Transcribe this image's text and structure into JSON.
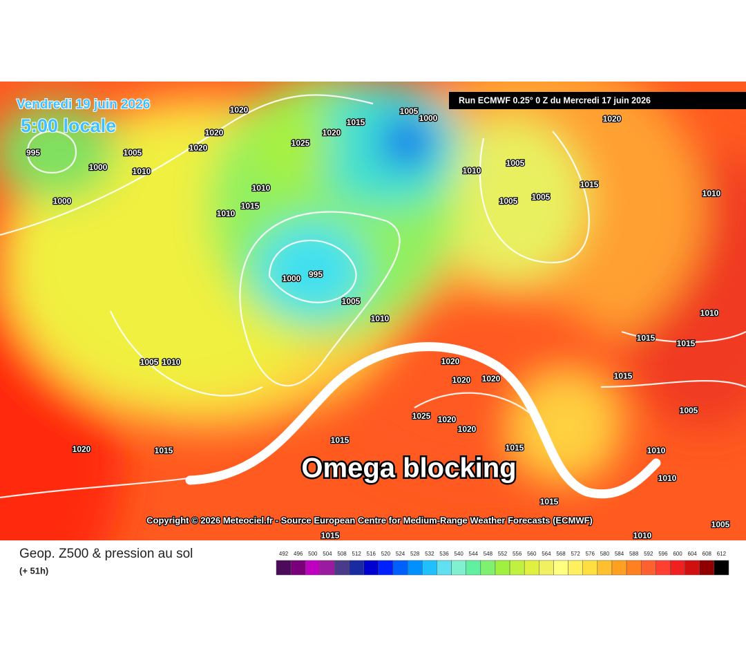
{
  "header": {
    "date": "Vendredi 19 juin 2026",
    "time": "5:00 locale",
    "run": "Run ECMWF 0.25° 0 Z du Mercredi 17 juin 2026"
  },
  "map": {
    "annotation": "Omega blocking",
    "copyright": "Copyright © 2026 Meteociel.fr - Source European Centre for Medium-Range Weather Forecasts (ECMWF)",
    "isobar_labels": [
      1020,
      995,
      1005,
      1000,
      1010,
      1020,
      1020,
      1000,
      1025,
      1020,
      1015,
      1005,
      1000,
      1010,
      1015,
      1010,
      1010,
      1005,
      1015,
      1020,
      1005,
      1005,
      1000,
      995,
      1005,
      1010,
      1005,
      1010,
      1020,
      1020,
      1020,
      1025,
      1020,
      1020,
      1015,
      1015,
      1020,
      1015,
      1015,
      1015,
      1015,
      1015,
      1010,
      1010,
      1005,
      1010,
      1010,
      1005,
      1010,
      1015
    ]
  },
  "legend": {
    "title": "Geop. Z500 & pression au sol",
    "lead": "(+ 51h)",
    "values": [
      492,
      496,
      500,
      504,
      508,
      512,
      516,
      520,
      524,
      528,
      532,
      536,
      540,
      544,
      548,
      552,
      556,
      560,
      564,
      568,
      572,
      576,
      580,
      584,
      588,
      592,
      596,
      600,
      604,
      608,
      612
    ],
    "colors": [
      "#4b0a5a",
      "#7a007a",
      "#c000c0",
      "#9a1aa0",
      "#4a3a8a",
      "#1a2aa0",
      "#0000d0",
      "#0020ff",
      "#0060ff",
      "#0090ff",
      "#20c0ff",
      "#60e0f0",
      "#80f0d0",
      "#60f0a0",
      "#80f070",
      "#a0f040",
      "#c0f040",
      "#e0f040",
      "#f0f060",
      "#ffff80",
      "#fff060",
      "#ffe040",
      "#ffc030",
      "#ffa020",
      "#ff8020",
      "#ff6030",
      "#ff4030",
      "#f02020",
      "#d01010",
      "#900000",
      "#000000"
    ]
  }
}
